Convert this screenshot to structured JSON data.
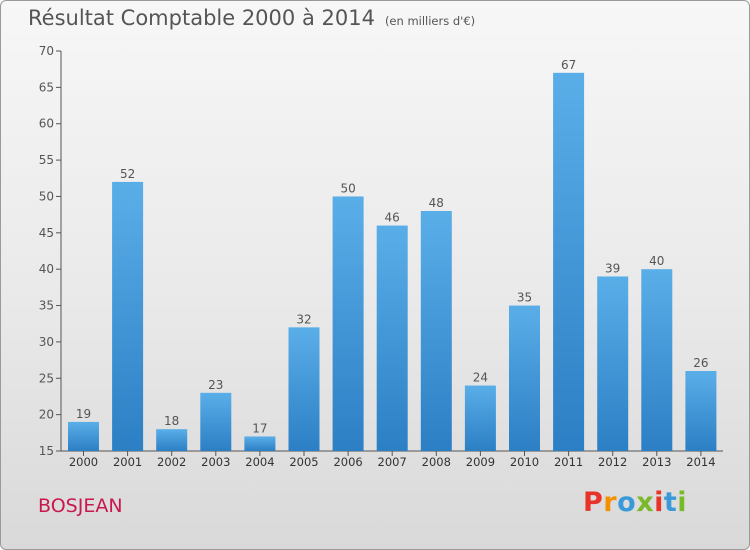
{
  "chart_data": {
    "type": "bar",
    "title": "Résultat Comptable 2000 à 2014",
    "subtitle": "(en milliers d'€)",
    "categories": [
      "2000",
      "2001",
      "2002",
      "2003",
      "2004",
      "2005",
      "2006",
      "2007",
      "2008",
      "2009",
      "2010",
      "2011",
      "2012",
      "2013",
      "2014"
    ],
    "values": [
      19,
      52,
      18,
      23,
      17,
      32,
      50,
      46,
      48,
      24,
      35,
      67,
      39,
      40,
      26
    ],
    "ylim": [
      15,
      70
    ],
    "yticks": [
      15,
      20,
      25,
      30,
      35,
      40,
      45,
      50,
      55,
      60,
      65,
      70
    ],
    "grid": false,
    "bar_color": "#3d95d8"
  },
  "footer": {
    "commune": "BOSJEAN",
    "logo_text": "Proxiti"
  },
  "colors": {
    "commune": "#c8184e",
    "logo": [
      "#e8332a",
      "#f39200",
      "#3a9ad9",
      "#7ab929",
      "#e8332a",
      "#3a9ad9",
      "#7ab929"
    ]
  }
}
